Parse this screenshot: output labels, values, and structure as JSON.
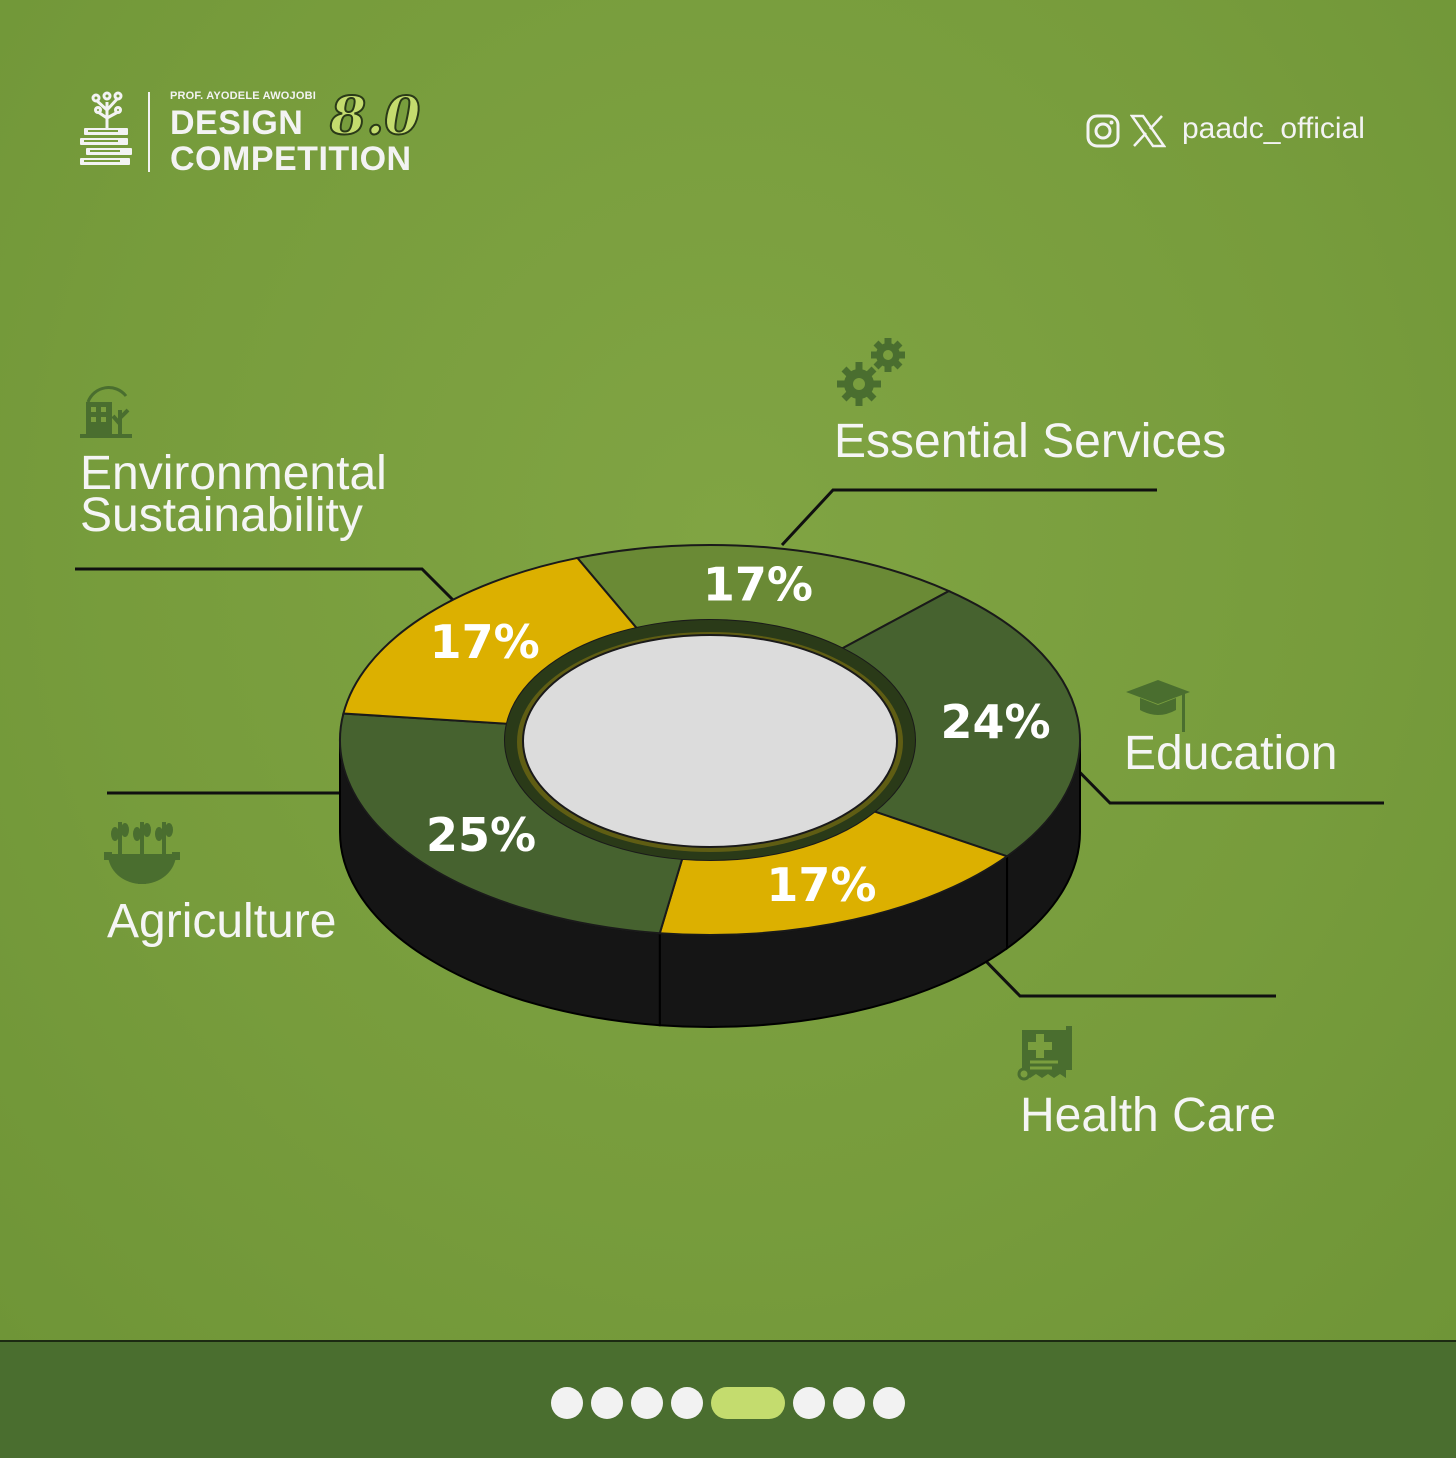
{
  "header": {
    "logo": {
      "subtitle": "PROF. AYODELE AWOJOBI",
      "line1": "DESIGN",
      "line2": "COMPETITION",
      "version": "8.0"
    },
    "social": {
      "icons": [
        "instagram-icon",
        "x-icon"
      ],
      "handle": "paadc_official"
    }
  },
  "chart_data": {
    "type": "pie",
    "style": "3d-donut",
    "categories": [
      "Essential Services",
      "Education",
      "Health Care",
      "Agriculture",
      "Environmental Sustainability"
    ],
    "values": [
      17,
      24,
      17,
      25,
      17
    ],
    "value_labels": [
      "17%",
      "24%",
      "17%",
      "25%",
      "17%"
    ],
    "colors": [
      "#6a8a35",
      "#46622f",
      "#dcb000",
      "#46622f",
      "#dcb000"
    ],
    "icons": [
      "gears-icon",
      "graduation-cap-icon",
      "medical-document-icon",
      "crops-gear-icon",
      "eco-building-icon"
    ]
  },
  "labels": {
    "environmental_line1": "Environmental",
    "environmental_line2": "Sustainability"
  },
  "footer": {
    "pager": {
      "count": 8,
      "active_index": 4
    }
  },
  "colors": {
    "background": "#7a9e3e",
    "footer": "#4a6e2f",
    "accent": "#c4dc6e",
    "side_wall": "#151515",
    "donut_hole": "#dcdcdc"
  }
}
